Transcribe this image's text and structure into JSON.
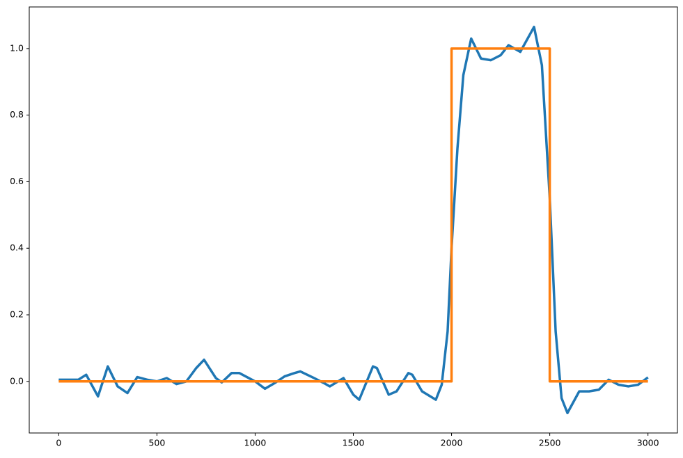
{
  "chart_data": {
    "type": "line",
    "series": [
      {
        "color": "#1f77b4",
        "x": [
          0,
          50,
          100,
          140,
          200,
          250,
          300,
          350,
          400,
          450,
          500,
          550,
          600,
          650,
          700,
          740,
          800,
          830,
          880,
          920,
          1000,
          1050,
          1100,
          1150,
          1200,
          1230,
          1300,
          1350,
          1380,
          1450,
          1500,
          1530,
          1600,
          1620,
          1680,
          1720,
          1780,
          1800,
          1850,
          1920,
          1950,
          1980,
          2000,
          2030,
          2060,
          2100,
          2150,
          2200,
          2250,
          2290,
          2350,
          2420,
          2460,
          2500,
          2530,
          2560,
          2590,
          2650,
          2700,
          2750,
          2800,
          2850,
          2900,
          2950,
          3000
        ],
        "values": [
          0.005,
          0.005,
          0.005,
          0.02,
          -0.045,
          0.045,
          -0.015,
          -0.035,
          0.013,
          0.005,
          0.0,
          0.01,
          -0.008,
          0.0,
          0.04,
          0.065,
          0.01,
          -0.003,
          0.025,
          0.025,
          0.0,
          -0.022,
          -0.005,
          0.015,
          0.025,
          0.03,
          0.01,
          -0.005,
          -0.015,
          0.01,
          -0.04,
          -0.055,
          0.045,
          0.04,
          -0.04,
          -0.03,
          0.025,
          0.02,
          -0.03,
          -0.055,
          -0.01,
          0.15,
          0.4,
          0.7,
          0.92,
          1.03,
          0.97,
          0.965,
          0.98,
          1.01,
          0.99,
          1.065,
          0.95,
          0.55,
          0.15,
          -0.05,
          -0.095,
          -0.03,
          -0.03,
          -0.025,
          0.005,
          -0.01,
          -0.015,
          -0.01,
          0.012
        ]
      },
      {
        "color": "#ff7f0e",
        "x": [
          0,
          2000,
          2000,
          2500,
          2500,
          3000
        ],
        "values": [
          0,
          0,
          1,
          1,
          0,
          0
        ]
      }
    ],
    "xlim": [
      -150,
      3150
    ],
    "xticks": [
      0,
      500,
      1000,
      1500,
      2000,
      2500,
      3000
    ],
    "ylim": [
      -0.155,
      1.125
    ],
    "yticks": [
      {
        "value": 0,
        "label": "0.0"
      },
      0.2,
      0.4,
      0.6,
      0.8,
      {
        "value": 1,
        "label": "1.0"
      }
    ]
  }
}
